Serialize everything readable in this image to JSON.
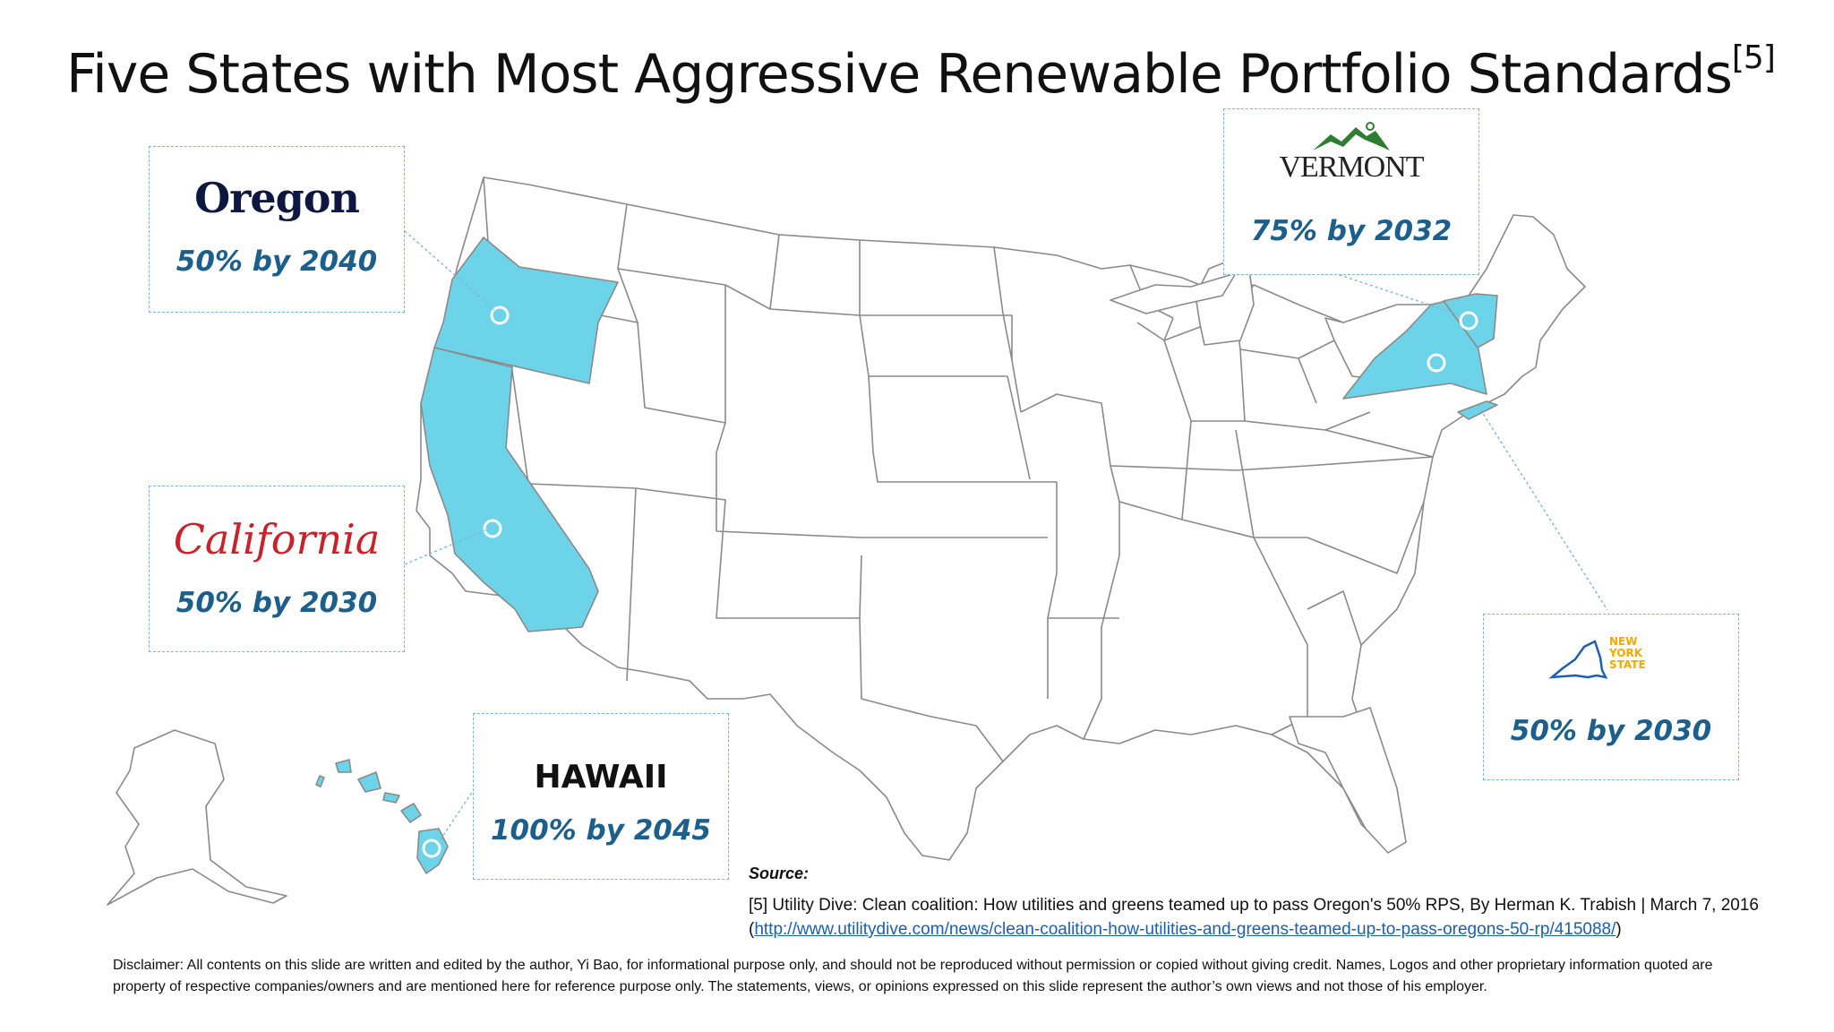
{
  "title": "Five States with Most Aggressive Renewable Portfolio Standards",
  "title_ref": "[5]",
  "accent_color": "#6dd3e8",
  "map": {
    "highlighted_states": [
      "Oregon",
      "California",
      "Hawaii",
      "New York",
      "Vermont"
    ]
  },
  "callouts": {
    "oregon": {
      "logo_text": "Oregon",
      "goal": "50% by 2040"
    },
    "california": {
      "logo_text": "California",
      "goal": "50% by 2030"
    },
    "hawaii": {
      "logo_text": "HAWAII",
      "goal": "100% by 2045"
    },
    "vermont": {
      "logo_text": "VERMONT",
      "goal": "75% by 2032"
    },
    "new_york": {
      "logo_text_1": "NEW",
      "logo_text_2": "YORK",
      "logo_text_3": "STATE",
      "goal": "50% by 2030"
    }
  },
  "source": {
    "label": "Source:",
    "ref_text": "[5] Utility Dive: Clean coalition: How utilities and greens teamed up to pass Oregon's 50% RPS, By Herman K. Trabish | March 7, 2016 (",
    "link": "http://www.utilitydive.com/news/clean-coalition-how-utilities-and-greens-teamed-up-to-pass-oregons-50-rp/415088/",
    "ref_end": ")"
  },
  "disclaimer": "Disclaimer: All contents on this slide are written and edited by the author, Yi Bao, for informational purpose only, and should not be reproduced without permission or copied without giving credit. Names, Logos and other proprietary information quoted are property of respective companies/owners and are mentioned here for reference purpose only. The statements, views, or opinions expressed on this slide represent the author’s own views and not those of his employer."
}
